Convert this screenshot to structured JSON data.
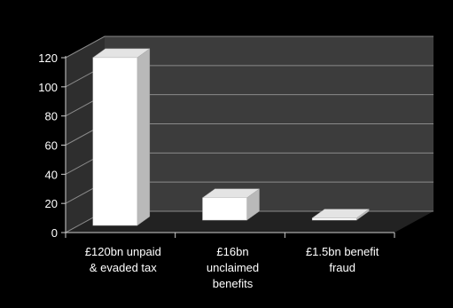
{
  "chart_data": {
    "type": "bar",
    "style": "3d-column",
    "categories": [
      [
        "£120bn unpaid",
        "& evaded tax"
      ],
      [
        "£16bn",
        "unclaimed",
        "benefits"
      ],
      [
        "£1.5bn benefit",
        "fraud"
      ]
    ],
    "values": [
      120,
      16,
      1.5
    ],
    "ylim": [
      0,
      120
    ],
    "yticks": [
      "0",
      "20",
      "40",
      "60",
      "80",
      "100",
      "120"
    ],
    "grid": true,
    "colors": {
      "background": "#000000",
      "wall": "#3c3c3c",
      "floor": "#222222",
      "bar_front": "#ffffff",
      "bar_top": "#e4e4e4",
      "bar_side": "#b9b9b9",
      "grid": "#8a8a8a",
      "text": "#ffffff"
    }
  }
}
